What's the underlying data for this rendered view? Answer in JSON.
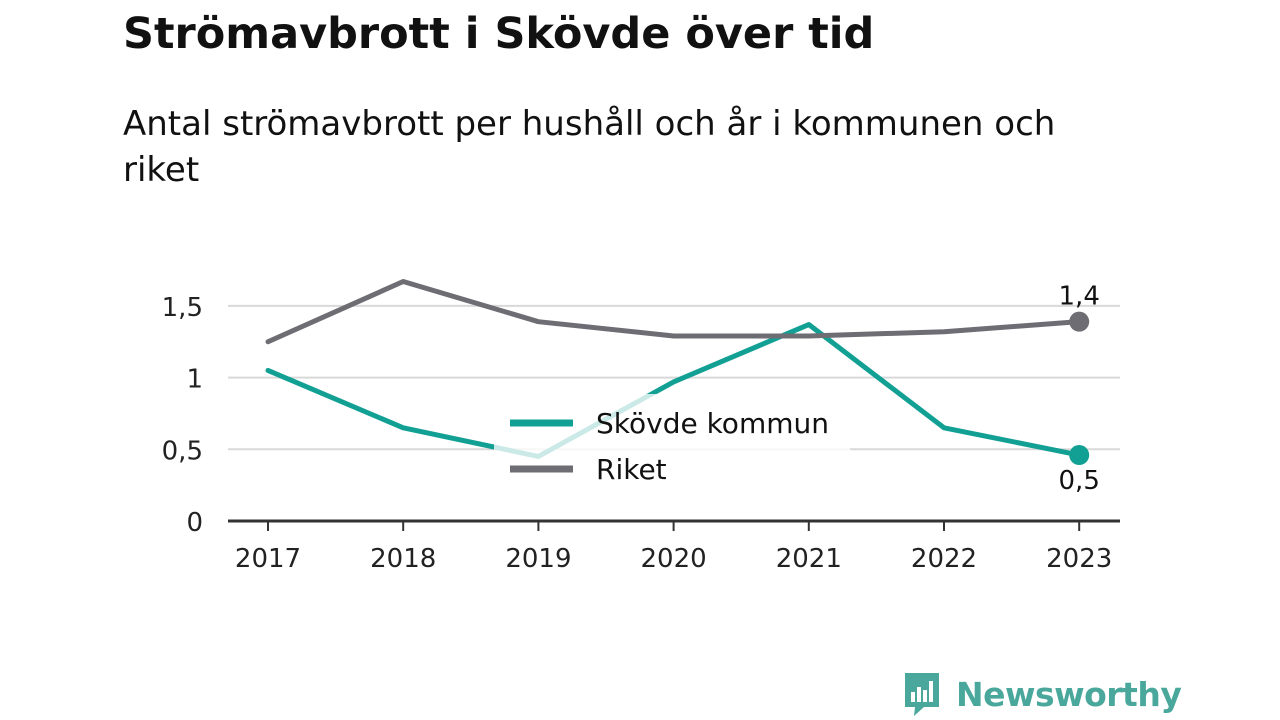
{
  "colors": {
    "skovde": "#12a094",
    "riket": "#6e6d74",
    "brand": "#4aa79b"
  },
  "brand": {
    "name": "Newsworthy",
    "icon": "chart-speech-bubble-icon"
  },
  "chart_data": {
    "type": "line",
    "title": "Strömavbrott i Skövde över tid",
    "subtitle": "Antal strömavbrott per hushåll och år i kommunen och riket",
    "x": [
      "2017",
      "2018",
      "2019",
      "2020",
      "2021",
      "2022",
      "2023"
    ],
    "y_ticks": [
      {
        "value": 0,
        "label": "0"
      },
      {
        "value": 0.5,
        "label": "0,5"
      },
      {
        "value": 1,
        "label": "1"
      },
      {
        "value": 1.5,
        "label": "1,5"
      }
    ],
    "ylim": [
      0,
      1.8
    ],
    "grid": true,
    "legend_position": "center",
    "series": [
      {
        "name": "Skövde kommun",
        "color": "#12a094",
        "values": [
          1.05,
          0.65,
          0.45,
          0.97,
          1.37,
          0.65,
          0.46
        ],
        "end_label": "0,5",
        "end_label_position": "below"
      },
      {
        "name": "Riket",
        "color": "#6e6d74",
        "values": [
          1.25,
          1.67,
          1.39,
          1.29,
          1.29,
          1.32,
          1.39
        ],
        "end_label": "1,4",
        "end_label_position": "above"
      }
    ]
  }
}
